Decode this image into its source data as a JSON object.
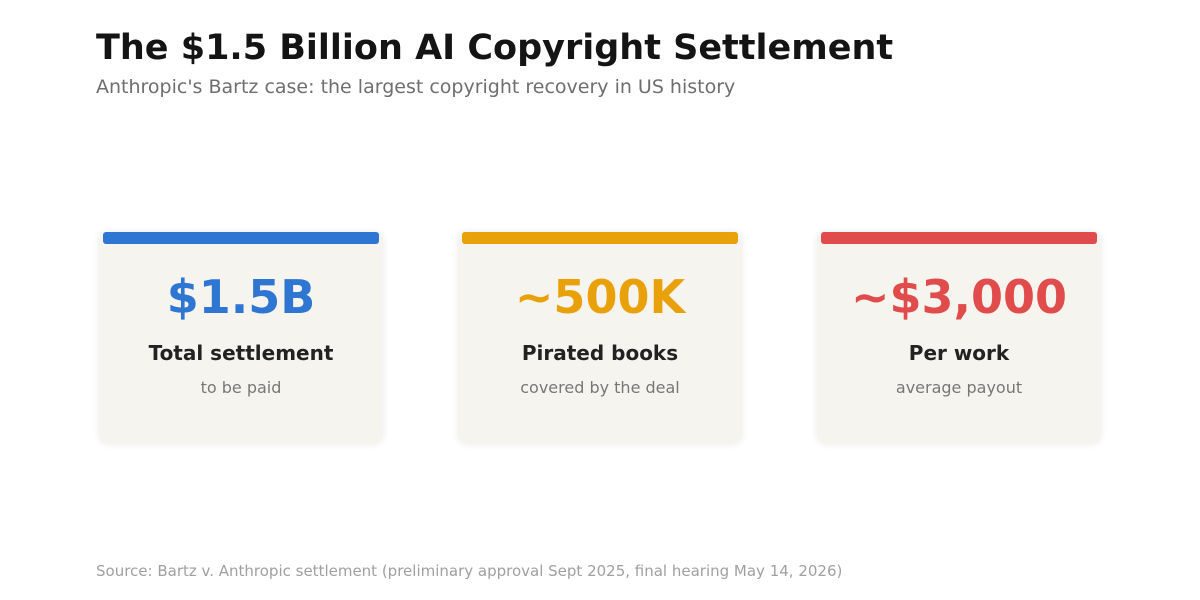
{
  "title": "The $1.5 Billion AI Copyright Settlement",
  "subtitle": "Anthropic's Bartz case: the largest copyright recovery in US history",
  "cards": [
    {
      "value": "$1.5B",
      "label": "Total settlement",
      "sub": "to be paid",
      "color": "#2f76d2"
    },
    {
      "value": "~500K",
      "label": "Pirated books",
      "sub": "covered by the deal",
      "color": "#e9a10a"
    },
    {
      "value": "~$3,000",
      "label": "Per work",
      "sub": "average payout",
      "color": "#e04b4b"
    }
  ],
  "source": "Source: Bartz v. Anthropic settlement (preliminary approval Sept 2025, final hearing May 14, 2026)"
}
